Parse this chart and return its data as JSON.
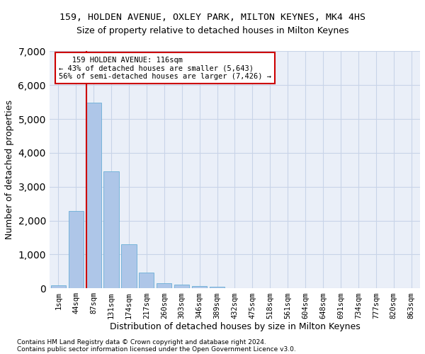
{
  "title1": "159, HOLDEN AVENUE, OXLEY PARK, MILTON KEYNES, MK4 4HS",
  "title2": "Size of property relative to detached houses in Milton Keynes",
  "xlabel": "Distribution of detached houses by size in Milton Keynes",
  "ylabel": "Number of detached properties",
  "bar_color": "#aec6e8",
  "bar_edge_color": "#6aaed6",
  "grid_color": "#c8d4e8",
  "bg_color": "#eaeff8",
  "annotation_box_color": "#cc0000",
  "vline_color": "#cc0000",
  "categories": [
    "1sqm",
    "44sqm",
    "87sqm",
    "131sqm",
    "174sqm",
    "217sqm",
    "260sqm",
    "303sqm",
    "346sqm",
    "389sqm",
    "432sqm",
    "475sqm",
    "518sqm",
    "561sqm",
    "604sqm",
    "648sqm",
    "691sqm",
    "734sqm",
    "777sqm",
    "820sqm",
    "863sqm"
  ],
  "values": [
    80,
    2280,
    5480,
    3450,
    1310,
    470,
    155,
    100,
    65,
    50,
    0,
    0,
    0,
    0,
    0,
    0,
    0,
    0,
    0,
    0,
    0
  ],
  "ylim": [
    0,
    7000
  ],
  "yticks": [
    0,
    1000,
    2000,
    3000,
    4000,
    5000,
    6000,
    7000
  ],
  "vline_bar_index": 2,
  "annotation_text_line1": "   159 HOLDEN AVENUE: 116sqm   ",
  "annotation_text_line2": "← 43% of detached houses are smaller (5,643)",
  "annotation_text_line3": "56% of semi-detached houses are larger (7,426) →",
  "footer1": "Contains HM Land Registry data © Crown copyright and database right 2024.",
  "footer2": "Contains public sector information licensed under the Open Government Licence v3.0."
}
